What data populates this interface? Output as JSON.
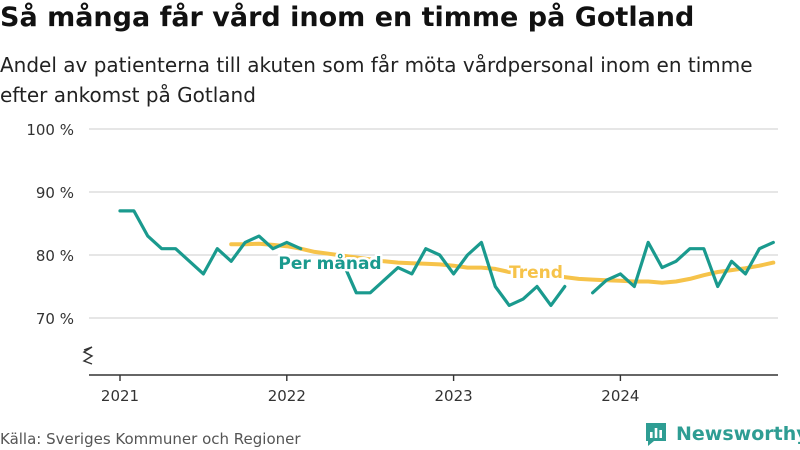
{
  "title": "Så många får vård inom en timme på Gotland",
  "subtitle": "Andel av patienterna till akuten som får möta vårdpersonal inom en timme efter ankomst på Gotland",
  "source": "Källa: Sveriges Kommuner och Regioner",
  "brand": "Newsworthy",
  "colors": {
    "monthly": "#1a9a8e",
    "trend": "#f6c34a",
    "grid": "#d8d8d8",
    "text": "#333333",
    "brand": "#2e9d93"
  },
  "chart_data": {
    "type": "line",
    "x_ticks": [
      "2021",
      "2022",
      "2023",
      "2024"
    ],
    "y_ticks": [
      {
        "value": 70,
        "label": "70 %"
      },
      {
        "value": 80,
        "label": "80 %"
      },
      {
        "value": 90,
        "label": "90 %"
      },
      {
        "value": 100,
        "label": "100 %"
      }
    ],
    "ylim": [
      70,
      100
    ],
    "y_axis_break": true,
    "grid": true,
    "series": [
      {
        "name": "Per månad",
        "color": "#1a9a8e",
        "data": [
          [
            "2021-01",
            87
          ],
          [
            "2021-02",
            87
          ],
          [
            "2021-03",
            83
          ],
          [
            "2021-04",
            81
          ],
          [
            "2021-05",
            81
          ],
          [
            "2021-06",
            79
          ],
          [
            "2021-07",
            77
          ],
          [
            "2021-08",
            81
          ],
          [
            "2021-09",
            79
          ],
          [
            "2021-10",
            82
          ],
          [
            "2021-11",
            83
          ],
          [
            "2021-12",
            81
          ],
          [
            "2022-01",
            82
          ],
          [
            "2022-02",
            81
          ],
          [
            "2022-03",
            null
          ],
          [
            "2022-04",
            null
          ],
          [
            "2022-05",
            79
          ],
          [
            "2022-06",
            74
          ],
          [
            "2022-07",
            74
          ],
          [
            "2022-08",
            76
          ],
          [
            "2022-09",
            78
          ],
          [
            "2022-10",
            77
          ],
          [
            "2022-11",
            81
          ],
          [
            "2022-12",
            80
          ],
          [
            "2023-01",
            77
          ],
          [
            "2023-02",
            80
          ],
          [
            "2023-03",
            82
          ],
          [
            "2023-04",
            75
          ],
          [
            "2023-05",
            72
          ],
          [
            "2023-06",
            73
          ],
          [
            "2023-07",
            75
          ],
          [
            "2023-08",
            72
          ],
          [
            "2023-09",
            75
          ],
          [
            "2023-10",
            null
          ],
          [
            "2023-11",
            74
          ],
          [
            "2023-12",
            76
          ],
          [
            "2024-01",
            77
          ],
          [
            "2024-02",
            75
          ],
          [
            "2024-03",
            82
          ],
          [
            "2024-04",
            78
          ],
          [
            "2024-05",
            79
          ],
          [
            "2024-06",
            81
          ],
          [
            "2024-07",
            81
          ],
          [
            "2024-08",
            75
          ],
          [
            "2024-09",
            79
          ],
          [
            "2024-10",
            77
          ],
          [
            "2024-11",
            81
          ],
          [
            "2024-12",
            82
          ]
        ]
      },
      {
        "name": "Trend",
        "color": "#f6c34a",
        "data": [
          [
            "2021-09",
            81.7
          ],
          [
            "2021-10",
            81.7
          ],
          [
            "2021-11",
            81.8
          ],
          [
            "2021-12",
            81.6
          ],
          [
            "2022-01",
            81.4
          ],
          [
            "2022-02",
            81.0
          ],
          [
            "2022-03",
            80.5
          ],
          [
            "2022-04",
            80.2
          ],
          [
            "2022-05",
            79.9
          ],
          [
            "2022-06",
            79.6
          ],
          [
            "2022-07",
            79.3
          ],
          [
            "2022-08",
            79.0
          ],
          [
            "2022-09",
            78.8
          ],
          [
            "2022-10",
            78.7
          ],
          [
            "2022-11",
            78.6
          ],
          [
            "2022-12",
            78.5
          ],
          [
            "2023-01",
            78.3
          ],
          [
            "2023-02",
            78.0
          ],
          [
            "2023-03",
            78.0
          ],
          [
            "2023-04",
            77.8
          ],
          [
            "2023-05",
            77.3
          ],
          [
            "2023-06",
            77.1
          ],
          [
            "2023-07",
            77.0
          ],
          [
            "2023-08",
            76.8
          ],
          [
            "2023-09",
            76.5
          ],
          [
            "2023-10",
            76.2
          ],
          [
            "2023-11",
            76.1
          ],
          [
            "2023-12",
            76.0
          ],
          [
            "2024-01",
            75.9
          ],
          [
            "2024-02",
            75.8
          ],
          [
            "2024-03",
            75.8
          ],
          [
            "2024-04",
            75.6
          ],
          [
            "2024-05",
            75.8
          ],
          [
            "2024-06",
            76.2
          ],
          [
            "2024-07",
            76.8
          ],
          [
            "2024-08",
            77.3
          ],
          [
            "2024-09",
            77.6
          ],
          [
            "2024-10",
            77.9
          ],
          [
            "2024-11",
            78.3
          ],
          [
            "2024-12",
            78.8
          ]
        ]
      }
    ]
  }
}
